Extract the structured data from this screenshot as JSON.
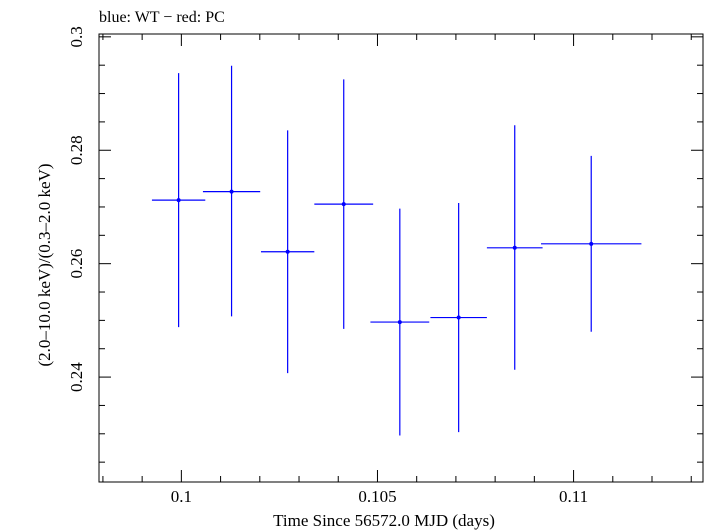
{
  "chart_data": {
    "type": "scatter",
    "title": "blue: WT − red: PC",
    "xlabel": "Time Since 56572.0 MJD (days)",
    "ylabel": "(2.0–10.0 keV)/(0.3–2.0 keV)",
    "xlim": [
      0.0979,
      0.1133
    ],
    "ylim": [
      0.2215,
      0.3005
    ],
    "x_ticks": [
      0.1,
      0.105,
      0.11
    ],
    "x_tick_labels": [
      "0.1",
      "0.105",
      "0.11"
    ],
    "y_ticks": [
      0.24,
      0.26,
      0.28,
      0.3
    ],
    "y_tick_labels": [
      "0.24",
      "0.26",
      "0.28",
      "0.3"
    ],
    "grid": false,
    "series": [
      {
        "color": "#0000ff",
        "points": [
          {
            "x": 0.09993,
            "xerr": 0.00068,
            "y": 0.2712,
            "yerr_lo": 0.0224,
            "yerr_hi": 0.0224
          },
          {
            "x": 0.10128,
            "xerr": 0.00073,
            "y": 0.2727,
            "yerr_lo": 0.022,
            "yerr_hi": 0.0222
          },
          {
            "x": 0.10271,
            "xerr": 0.00068,
            "y": 0.2621,
            "yerr_lo": 0.0214,
            "yerr_hi": 0.0214
          },
          {
            "x": 0.10414,
            "xerr": 0.00075,
            "y": 0.2705,
            "yerr_lo": 0.022,
            "yerr_hi": 0.022
          },
          {
            "x": 0.10557,
            "xerr": 0.00075,
            "y": 0.2497,
            "yerr_lo": 0.02,
            "yerr_hi": 0.02
          },
          {
            "x": 0.10707,
            "xerr": 0.00072,
            "y": 0.2505,
            "yerr_lo": 0.0202,
            "yerr_hi": 0.0202
          },
          {
            "x": 0.1085,
            "xerr": 0.00071,
            "y": 0.2628,
            "yerr_lo": 0.0215,
            "yerr_hi": 0.0216
          },
          {
            "x": 0.11045,
            "xerr": 0.00128,
            "y": 0.2635,
            "yerr_lo": 0.0155,
            "yerr_hi": 0.0155
          }
        ]
      }
    ]
  }
}
